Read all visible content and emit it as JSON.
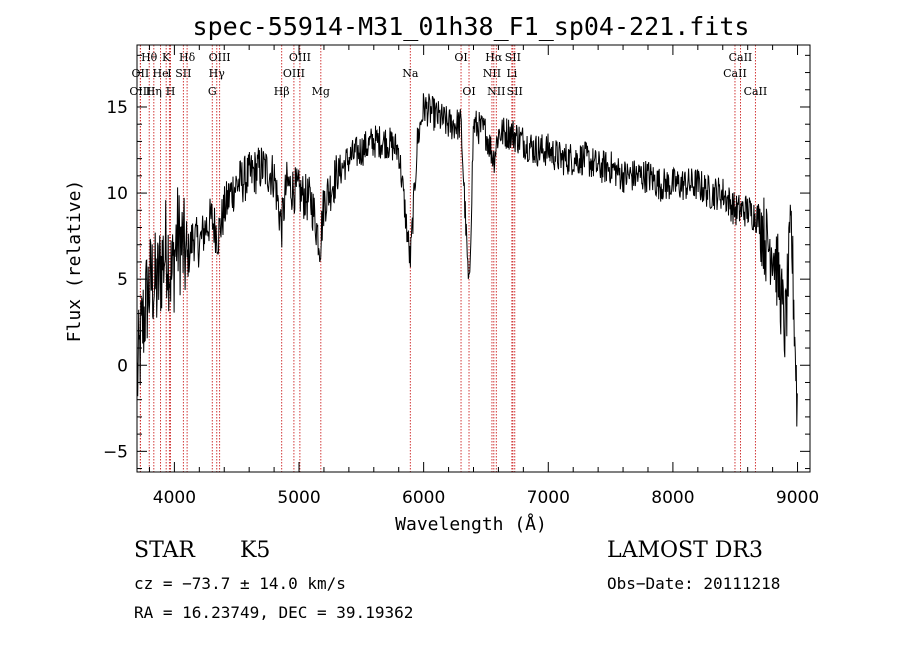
{
  "chart_data": {
    "type": "line",
    "title": "spec-55914-M31_01h38_F1_sp04-221.fits",
    "xlabel": "Wavelength (Å)",
    "ylabel": "Flux (relative)",
    "xlim": [
      3700,
      9100
    ],
    "ylim": [
      -6.2,
      18.6
    ],
    "x_ticks": [
      4000,
      5000,
      6000,
      7000,
      8000,
      9000
    ],
    "x_tick_labels": [
      "4000",
      "5000",
      "6000",
      "7000",
      "8000",
      "9000"
    ],
    "y_ticks": [
      -5,
      0,
      5,
      10,
      15
    ],
    "y_tick_labels": [
      "−5",
      "0",
      "5",
      "10",
      "15"
    ],
    "grid": false,
    "series": [
      {
        "name": "flux",
        "x": [
          3700,
          3740,
          3780,
          3820,
          3860,
          3900,
          3940,
          3980,
          4020,
          4060,
          4100,
          4150,
          4200,
          4250,
          4300,
          4350,
          4400,
          4450,
          4500,
          4600,
          4700,
          4800,
          4860,
          4900,
          5000,
          5100,
          5170,
          5200,
          5300,
          5400,
          5500,
          5600,
          5700,
          5800,
          5893,
          5950,
          6000,
          6100,
          6200,
          6300,
          6364,
          6400,
          6500,
          6563,
          6600,
          6700,
          6800,
          6900,
          7000,
          7100,
          7200,
          7300,
          7400,
          7500,
          7600,
          7700,
          7800,
          7900,
          8000,
          8100,
          8200,
          8300,
          8400,
          8500,
          8600,
          8700,
          8750,
          8800,
          8850,
          8900,
          8950,
          9000
        ],
        "values": [
          -1,
          2,
          4,
          5,
          4.5,
          6,
          7,
          5,
          7.5,
          7,
          6,
          7.5,
          7,
          8,
          8.5,
          7.5,
          9,
          10,
          10.5,
          11,
          11.5,
          11,
          8,
          10.5,
          10,
          9.5,
          7,
          9.5,
          11,
          12,
          12.5,
          13,
          13,
          12.5,
          6,
          13,
          15,
          14.5,
          14,
          14,
          4,
          14,
          13.5,
          12,
          13.5,
          13.5,
          13,
          12.5,
          12.5,
          12,
          12,
          12,
          11.5,
          11.5,
          11,
          11,
          11,
          10.5,
          10.5,
          10.5,
          10.5,
          10,
          10,
          9,
          9,
          8.5,
          7,
          7,
          5,
          2,
          8,
          -3
        ]
      }
    ],
    "spectral_lines": [
      {
        "label": "Hθ",
        "wavelength": 3798,
        "row": 1
      },
      {
        "label": "OII",
        "wavelength": 3727,
        "row": 2
      },
      {
        "label": "OIII",
        "wavelength": 3727,
        "row": 3
      },
      {
        "label": "He",
        "wavelength": 3889,
        "row": 2
      },
      {
        "label": "Hη",
        "wavelength": 3835,
        "row": 3
      },
      {
        "label": "K",
        "wavelength": 3934,
        "row": 1
      },
      {
        "label": "H",
        "wavelength": 3969,
        "row": 3
      },
      {
        "label": "I",
        "wavelength": 3960,
        "row": 2
      },
      {
        "label": "SII",
        "wavelength": 4072,
        "row": 2
      },
      {
        "label": "Hδ",
        "wavelength": 4102,
        "row": 1
      },
      {
        "label": "OIII",
        "wavelength": 4363,
        "row": 1
      },
      {
        "label": "Hγ",
        "wavelength": 4340,
        "row": 2
      },
      {
        "label": "G",
        "wavelength": 4304,
        "row": 3
      },
      {
        "label": "OIII",
        "wavelength": 5007,
        "row": 1
      },
      {
        "label": "OIII",
        "wavelength": 4959,
        "row": 2
      },
      {
        "label": "Hβ",
        "wavelength": 4861,
        "row": 3
      },
      {
        "label": "Mg",
        "wavelength": 5175,
        "row": 3
      },
      {
        "label": "Na",
        "wavelength": 5893,
        "row": 2
      },
      {
        "label": "OI",
        "wavelength": 6300,
        "row": 1
      },
      {
        "label": "OI",
        "wavelength": 6364,
        "row": 3
      },
      {
        "label": "Hα",
        "wavelength": 6563,
        "row": 1
      },
      {
        "label": "SII",
        "wavelength": 6716,
        "row": 1
      },
      {
        "label": "NII",
        "wavelength": 6548,
        "row": 2
      },
      {
        "label": "Li",
        "wavelength": 6708,
        "row": 2
      },
      {
        "label": "NII",
        "wavelength": 6583,
        "row": 3
      },
      {
        "label": "SII",
        "wavelength": 6731,
        "row": 3
      },
      {
        "label": "CaII",
        "wavelength": 8542,
        "row": 1
      },
      {
        "label": "CaII",
        "wavelength": 8498,
        "row": 2
      },
      {
        "label": "CaII",
        "wavelength": 8662,
        "row": 3
      }
    ]
  },
  "info": {
    "class_label": "STAR",
    "subclass_label": "K5",
    "survey_label": "LAMOST DR3",
    "redshift_text": "cz = −73.7 ± 14.0 km/s",
    "obs_date_text": "Obs−Date: 20111218",
    "coords_text": "RA =  16.23749, DEC =  39.19362"
  }
}
